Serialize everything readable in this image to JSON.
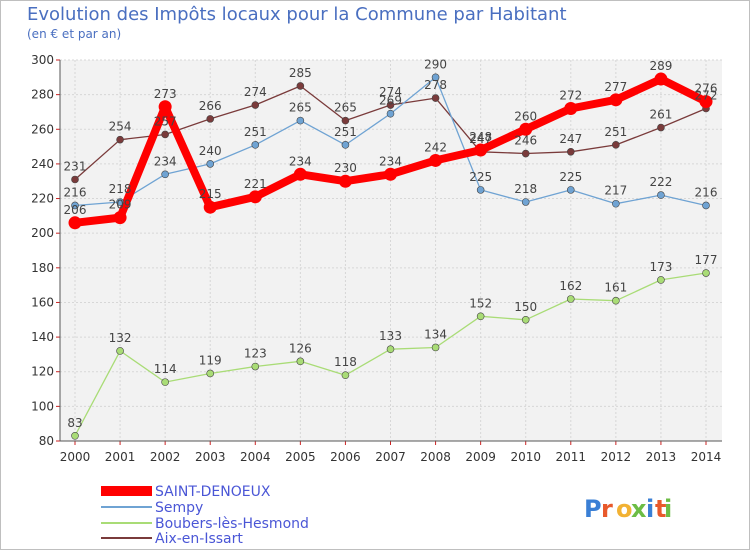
{
  "title": "Evolution des Impôts locaux pour la Commune par Habitant",
  "subtitle": "(en € et par an)",
  "brand": "Proxiti",
  "chart_data": {
    "type": "line",
    "x": [
      "2000",
      "2001",
      "2002",
      "2003",
      "2004",
      "2005",
      "2006",
      "2007",
      "2008",
      "2009",
      "2010",
      "2011",
      "2012",
      "2013",
      "2014"
    ],
    "ylim": [
      80,
      300
    ],
    "yticks": [
      80,
      100,
      120,
      140,
      160,
      180,
      200,
      220,
      240,
      260,
      280,
      300
    ],
    "grid": true,
    "legend_position": "bottom-left",
    "series": [
      {
        "name": "SAINT-DENOEUX",
        "color": "#ff0000",
        "values": [
          206,
          209,
          273,
          215,
          221,
          234,
          230,
          234,
          242,
          248,
          260,
          272,
          277,
          289,
          276
        ]
      },
      {
        "name": "Sempy",
        "color": "#6fa3d3",
        "values": [
          216,
          218,
          234,
          240,
          251,
          265,
          251,
          269,
          290,
          225,
          218,
          225,
          217,
          222,
          216
        ]
      },
      {
        "name": "Boubers-lès-Hesmond",
        "color": "#a9dc76",
        "values": [
          83,
          132,
          114,
          119,
          123,
          126,
          118,
          133,
          134,
          152,
          150,
          162,
          161,
          173,
          177
        ]
      },
      {
        "name": "Aix-en-Issart",
        "color": "#7a3b3b",
        "values": [
          231,
          254,
          257,
          266,
          274,
          285,
          265,
          274,
          278,
          247,
          246,
          247,
          251,
          261,
          272
        ]
      }
    ]
  }
}
